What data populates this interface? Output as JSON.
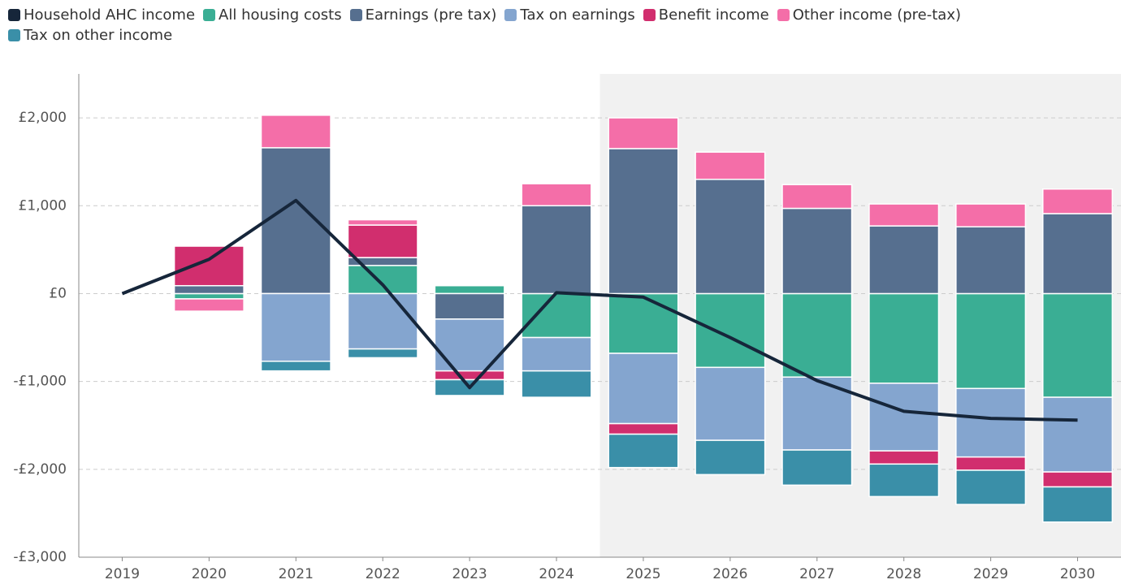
{
  "chart_data": {
    "type": "bar",
    "categories": [
      "2019",
      "2020",
      "2021",
      "2022",
      "2023",
      "2024",
      "2025",
      "2026",
      "2027",
      "2028",
      "2029",
      "2030"
    ],
    "series": [
      {
        "name": "Household AHC income",
        "color": "#16263a",
        "type": "line",
        "values": [
          0,
          390,
          1060,
          100,
          -1070,
          10,
          -40,
          -500,
          -990,
          -1340,
          -1420,
          -1440
        ]
      },
      {
        "name": "All housing costs",
        "color": "#3aae94",
        "values": [
          0,
          -60,
          0,
          320,
          90,
          -500,
          -680,
          -840,
          -950,
          -1020,
          -1080,
          -1180
        ]
      },
      {
        "name": "Earnings (pre tax)",
        "color": "#566f8f",
        "values": [
          0,
          90,
          1660,
          90,
          -290,
          1000,
          1650,
          1300,
          970,
          770,
          760,
          910
        ]
      },
      {
        "name": "Tax on earnings",
        "color": "#84a5cf",
        "values": [
          0,
          0,
          -770,
          -630,
          -590,
          -380,
          -800,
          -830,
          -830,
          -770,
          -780,
          -850
        ]
      },
      {
        "name": "Benefit income",
        "color": "#d12e6e",
        "values": [
          0,
          450,
          0,
          370,
          -100,
          0,
          -120,
          0,
          0,
          -150,
          -150,
          -170
        ]
      },
      {
        "name": "Other income (pre-tax)",
        "color": "#f46ea8",
        "values": [
          0,
          -140,
          370,
          60,
          0,
          250,
          350,
          310,
          270,
          250,
          260,
          280
        ]
      },
      {
        "name": "Tax on other income",
        "color": "#3a8fa8",
        "values": [
          0,
          0,
          -110,
          -100,
          -180,
          -300,
          -380,
          -390,
          -400,
          -370,
          -390,
          -400
        ]
      }
    ],
    "ylim": [
      -3000,
      2500
    ],
    "yticks": [
      {
        "value": -3000,
        "label": "-£3,000"
      },
      {
        "value": -2000,
        "label": "-£2,000"
      },
      {
        "value": -1000,
        "label": "-£1,000"
      },
      {
        "value": 0,
        "label": "£0"
      },
      {
        "value": 1000,
        "label": "£1,000"
      },
      {
        "value": 2000,
        "label": "£2,000"
      }
    ],
    "grid": true
  }
}
